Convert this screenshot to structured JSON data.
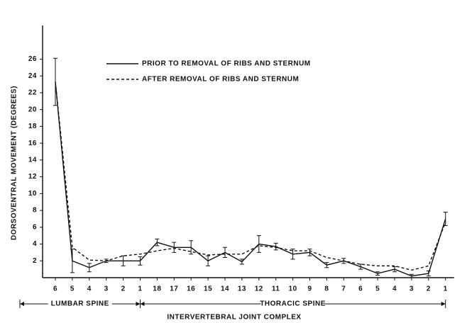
{
  "chart_data": {
    "type": "line",
    "ylabel": "DORSOVENTRAL MOVEMENT (DEGREES)",
    "xlabel": "INTERVERTEBRAL JOINT COMPLEX",
    "categories": [
      "6",
      "5",
      "4",
      "3",
      "2",
      "1",
      "18",
      "17",
      "16",
      "15",
      "14",
      "13",
      "12",
      "11",
      "10",
      "9",
      "8",
      "7",
      "6",
      "5",
      "4",
      "3",
      "2",
      "1"
    ],
    "series": [
      {
        "name": "PRIOR TO REMOVAL OF RIBS AND STERNUM",
        "color": "#111",
        "dash": false,
        "values": [
          23.3,
          2.0,
          1.2,
          2.0,
          2.0,
          2.0,
          4.2,
          3.6,
          3.6,
          2.0,
          3.0,
          1.9,
          4.0,
          3.7,
          2.8,
          3.0,
          1.5,
          2.0,
          1.3,
          0.5,
          1.0,
          0.2,
          0.5,
          7.0
        ],
        "errors": [
          2.8,
          1.4,
          0.5,
          0.2,
          0.6,
          0.5,
          0.4,
          0.6,
          0.8,
          0.6,
          0.6,
          0.3,
          1.0,
          0.4,
          0.6,
          0.4,
          0.3,
          0.3,
          0.3,
          0.2,
          0.3,
          0.2,
          0.3,
          0.8
        ]
      },
      {
        "name": "AFTER REMOVAL OF RIBS AND STERNUM",
        "color": "#111",
        "dash": true,
        "values": [
          23.3,
          3.6,
          2.1,
          2.0,
          2.6,
          2.8,
          3.2,
          3.5,
          3.1,
          2.7,
          2.8,
          2.8,
          3.8,
          3.6,
          3.2,
          3.2,
          2.4,
          2.0,
          1.6,
          1.4,
          1.4,
          0.9,
          1.4,
          6.6
        ]
      }
    ],
    "regions": [
      {
        "label": "LUMBAR SPINE",
        "start": 0,
        "end": 5
      },
      {
        "label": "THORACIC SPINE",
        "start": 5,
        "end": 23
      }
    ],
    "ylim": [
      0,
      30
    ],
    "yticks": [
      2,
      4,
      6,
      8,
      10,
      12,
      14,
      16,
      18,
      20,
      22,
      24,
      26
    ],
    "legend": "upper center"
  }
}
